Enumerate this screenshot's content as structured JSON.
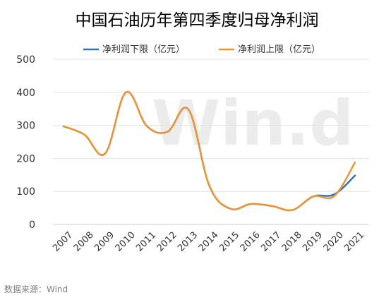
{
  "chart_data": {
    "type": "line",
    "title": "中国石油历年第四季度归母净利润",
    "categories": [
      "2007",
      "2008",
      "2009",
      "2010",
      "2011",
      "2012",
      "2013",
      "2014",
      "2015",
      "2016",
      "2017",
      "2018",
      "2019",
      "2020",
      "2021"
    ],
    "series": [
      {
        "name": "净利润下限（亿元）",
        "color": "#2e75b6",
        "values": [
          297,
          272,
          215,
          400,
          298,
          281,
          348,
          118,
          48,
          62,
          56,
          44,
          85,
          91,
          148
        ]
      },
      {
        "name": "净利润上限（亿元）",
        "color": "#ed9434",
        "values": [
          297,
          272,
          215,
          400,
          298,
          281,
          348,
          118,
          48,
          62,
          56,
          44,
          85,
          86,
          188
        ]
      }
    ],
    "ylim": [
      0,
      500
    ],
    "yticks": [
      0,
      100,
      200,
      300,
      400,
      500
    ],
    "grid": true,
    "legend_position": "top"
  },
  "watermark": "Win.d",
  "source": "数据来源：Wind"
}
